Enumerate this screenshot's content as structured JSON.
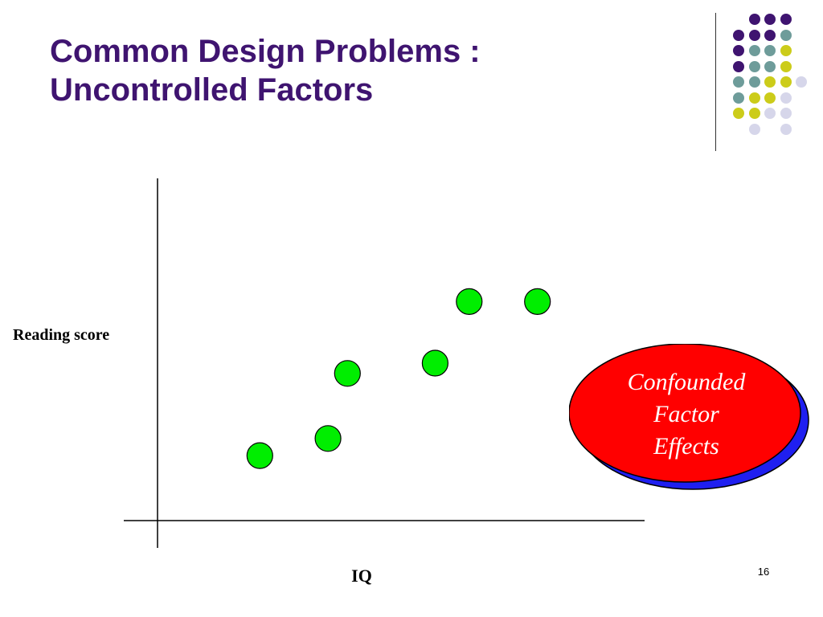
{
  "slide": {
    "title_line1": "Common Design Problems :",
    "title_line2": "Uncontrolled Factors",
    "page_number": "16"
  },
  "decoration": {
    "dot_colors": {
      "purple": "#3f1470",
      "teal": "#6e9c9a",
      "yellow": "#cccc1a",
      "lavender": "#d6d6ea"
    }
  },
  "callout": {
    "line1": "Confounded",
    "line2": "Factor",
    "line3": "Effects",
    "fill": "#ff0000",
    "shadow": "#1f1ff0"
  },
  "chart_data": {
    "type": "scatter",
    "xlabel": "IQ",
    "ylabel": "Reading score",
    "grid": false,
    "point_color": "#00ee00",
    "xlim": [
      0,
      100
    ],
    "ylim": [
      0,
      100
    ],
    "points": [
      {
        "x": 21,
        "y": 19
      },
      {
        "x": 35,
        "y": 24
      },
      {
        "x": 39,
        "y": 43
      },
      {
        "x": 57,
        "y": 46
      },
      {
        "x": 64,
        "y": 64
      },
      {
        "x": 78,
        "y": 64
      }
    ]
  }
}
